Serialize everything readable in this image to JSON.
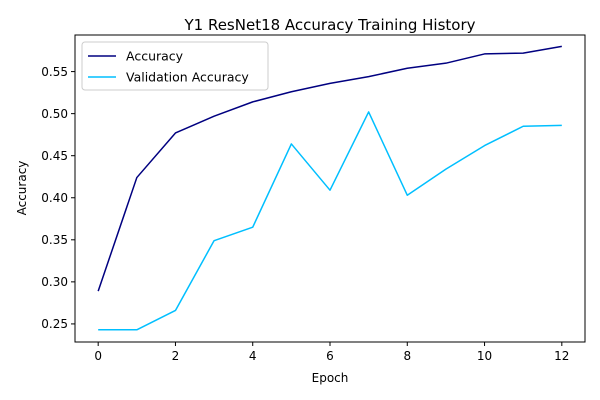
{
  "chart_data": {
    "type": "line",
    "title": "Y1 ResNet18 Accuracy Training History",
    "xlabel": "Epoch",
    "ylabel": "Accuracy",
    "xlim": [
      -0.6,
      12.6
    ],
    "ylim": [
      0.2285,
      0.5935
    ],
    "x_ticks": [
      0,
      2,
      4,
      6,
      8,
      10,
      12
    ],
    "y_ticks": [
      0.25,
      0.3,
      0.35,
      0.4,
      0.45,
      0.5,
      0.55
    ],
    "y_tick_labels": [
      "0.25",
      "0.30",
      "0.35",
      "0.40",
      "0.45",
      "0.50",
      "0.55"
    ],
    "grid": false,
    "legend_position": "top-left",
    "x": [
      0,
      1,
      2,
      3,
      4,
      5,
      6,
      7,
      8,
      9,
      10,
      11,
      12
    ],
    "series": [
      {
        "name": "Accuracy",
        "color": "#000080",
        "values": [
          0.289,
          0.424,
          0.477,
          0.497,
          0.514,
          0.526,
          0.536,
          0.544,
          0.554,
          0.56,
          0.571,
          0.572,
          0.58
        ]
      },
      {
        "name": "Validation Accuracy",
        "color": "#00BFFF",
        "values": [
          0.243,
          0.243,
          0.266,
          0.349,
          0.365,
          0.464,
          0.409,
          0.502,
          0.403,
          0.434,
          0.462,
          0.485,
          0.486
        ]
      }
    ]
  }
}
